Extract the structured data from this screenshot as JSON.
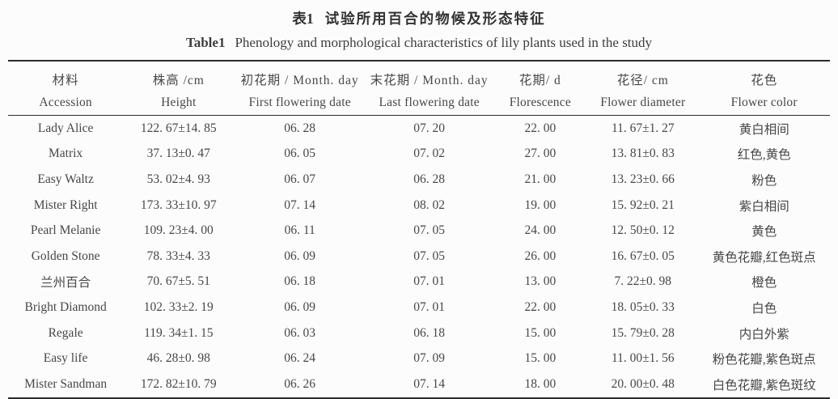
{
  "titles": {
    "zh_label": "表1",
    "zh_text": "试验所用百合的物候及形态特征",
    "en_label": "Table1",
    "en_text": "Phenology and morphological characteristics of lily plants used in the study"
  },
  "table": {
    "columns": [
      {
        "zh": "材料",
        "en": "Accession"
      },
      {
        "zh": "株高 /cm",
        "en": "Height"
      },
      {
        "zh": "初花期 / Month. day",
        "en": "First flowering date"
      },
      {
        "zh": "末花期 / Month. day",
        "en": "Last flowering date"
      },
      {
        "zh": "花期/ d",
        "en": "Florescence"
      },
      {
        "zh": "花径/ cm",
        "en": "Flower diameter"
      },
      {
        "zh": "花色",
        "en": "Flower color"
      }
    ],
    "rows": [
      [
        "Lady Alice",
        "122. 67±14. 85",
        "06. 28",
        "07. 20",
        "22. 00",
        "11. 67±1. 27",
        "黄白相间"
      ],
      [
        "Matrix",
        "37. 13±0. 47",
        "06. 05",
        "07. 02",
        "27. 00",
        "13. 81±0. 83",
        "红色,黄色"
      ],
      [
        "Easy Waltz",
        "53. 02±4. 93",
        "06. 07",
        "06. 28",
        "21. 00",
        "13. 23±0. 66",
        "粉色"
      ],
      [
        "Mister Right",
        "173. 33±10. 97",
        "07. 14",
        "08. 02",
        "19. 00",
        "15. 92±0. 21",
        "紫白相间"
      ],
      [
        "Pearl Melanie",
        "109. 23±4. 00",
        "06. 11",
        "07. 05",
        "24. 00",
        "12. 50±0. 12",
        "黄色"
      ],
      [
        "Golden Stone",
        "78. 33±4. 33",
        "06. 09",
        "07. 05",
        "26. 00",
        "16. 67±0. 05",
        "黄色花瓣,红色斑点"
      ],
      [
        "兰州百合",
        "70. 67±5. 51",
        "06. 18",
        "07. 01",
        "13. 00",
        "7. 22±0. 98",
        "橙色"
      ],
      [
        "Bright Diamond",
        "102. 33±2. 19",
        "06. 09",
        "07. 01",
        "22. 00",
        "18. 05±0. 33",
        "白色"
      ],
      [
        "Regale",
        "119. 34±1. 15",
        "06. 03",
        "06. 18",
        "15. 00",
        "15. 79±0. 28",
        "内白外紫"
      ],
      [
        "Easy life",
        "46. 28±0. 98",
        "06. 24",
        "07. 09",
        "15. 00",
        "11. 00±1. 56",
        "粉色花瓣,紫色斑点"
      ],
      [
        "Mister Sandman",
        "172. 82±10. 79",
        "06. 26",
        "07. 14",
        "18. 00",
        "20. 00±0. 48",
        "白色花瓣,紫色斑纹"
      ]
    ]
  },
  "colors": {
    "text": "#474747",
    "rule": "#2b2b2b",
    "background": "#fcfcfc"
  }
}
